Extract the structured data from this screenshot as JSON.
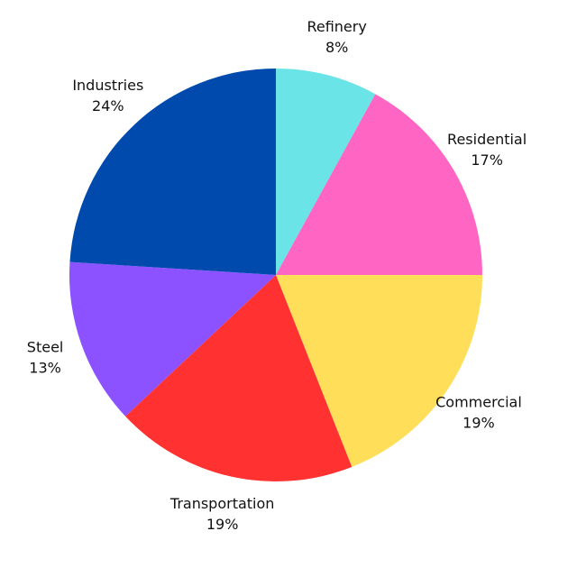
{
  "chart_data": {
    "type": "pie",
    "categories": [
      "Refinery",
      "Residential",
      "Commercial",
      "Transportation",
      "Steel",
      "Industries"
    ],
    "values": [
      8,
      17,
      19,
      19,
      13,
      24
    ],
    "value_labels": [
      "8%",
      "17%",
      "19%",
      "19%",
      "13%",
      "24%"
    ],
    "colors": [
      "#6ae4e6",
      "#ff66c4",
      "#ffde59",
      "#ff3131",
      "#8c52ff",
      "#004aad"
    ]
  }
}
